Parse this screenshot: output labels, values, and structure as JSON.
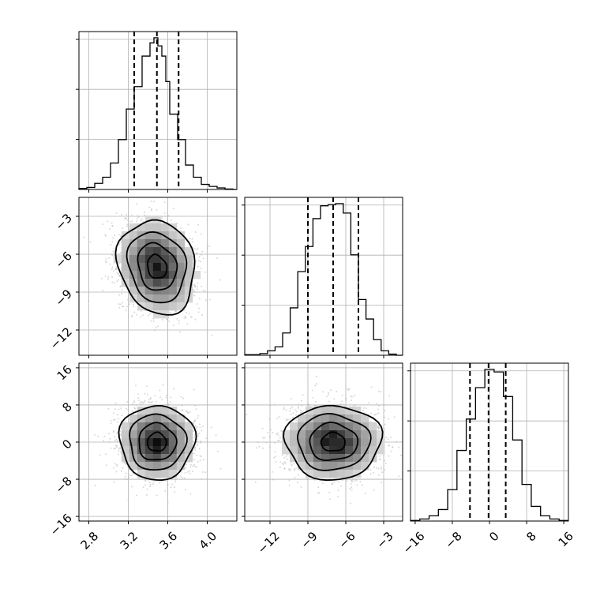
{
  "chart_data": {
    "type": "corner",
    "grid": true,
    "parameters": [
      {
        "ticks": [
          2.8,
          3.2,
          3.6,
          4.0
        ],
        "range": [
          2.7,
          4.3
        ]
      },
      {
        "ticks": [
          -12,
          -9,
          -6,
          -3
        ],
        "range": [
          -14,
          -1.5
        ]
      },
      {
        "ticks": [
          -16,
          -8,
          0,
          8,
          16
        ],
        "range": [
          -17,
          17
        ]
      }
    ],
    "tick_labels": {
      "p0": [
        "2.8",
        "3.2",
        "3.6",
        "4.0"
      ],
      "p1": [
        "−12",
        "−9",
        "−6",
        "−3"
      ],
      "p2": [
        "−16",
        "−8",
        "0",
        "8",
        "16"
      ]
    },
    "marginals": [
      {
        "param": 0,
        "edges": [
          2.7,
          2.78,
          2.86,
          2.94,
          3.02,
          3.1,
          3.18,
          3.26,
          3.34,
          3.42,
          3.46,
          3.5,
          3.54,
          3.58,
          3.62,
          3.7,
          3.78,
          3.86,
          3.94,
          4.02,
          4.1,
          4.18,
          4.26,
          4.3
        ],
        "counts": [
          2,
          4,
          12,
          24,
          52,
          98,
          158,
          202,
          262,
          288,
          298,
          282,
          262,
          212,
          148,
          98,
          48,
          24,
          10,
          6,
          3,
          1,
          0
        ],
        "quantiles": [
          3.26,
          3.49,
          3.71
        ]
      },
      {
        "param": 1,
        "edges": [
          -14,
          -13.4,
          -12.8,
          -12.2,
          -11.6,
          -11,
          -10.4,
          -9.8,
          -9.2,
          -8.6,
          -8,
          -7.4,
          -6.8,
          -6.2,
          -5.6,
          -5,
          -4.4,
          -3.8,
          -3.2,
          -2.6,
          -2,
          -1.5
        ],
        "counts": [
          1,
          1,
          3,
          8,
          15,
          40,
          85,
          150,
          195,
          245,
          268,
          270,
          272,
          255,
          180,
          100,
          65,
          28,
          8,
          2,
          0
        ],
        "quantiles": [
          -9.0,
          -7.0,
          -5.0
        ]
      },
      {
        "param": 2,
        "edges": [
          -17,
          -15,
          -13,
          -11,
          -9,
          -7,
          -5,
          -3,
          -1,
          1,
          3,
          5,
          7,
          9,
          11,
          13,
          15,
          17
        ],
        "counts": [
          1,
          4,
          10,
          22,
          60,
          135,
          195,
          255,
          290,
          285,
          238,
          155,
          70,
          28,
          10,
          4,
          1
        ],
        "quantiles": [
          -4.2,
          -0.2,
          3.5
        ]
      }
    ],
    "joint": [
      {
        "x_param": 0,
        "y_param": 1,
        "center": [
          3.49,
          -7.0
        ],
        "sigma": [
          0.19,
          1.9
        ],
        "rotation_deg": -18
      },
      {
        "x_param": 0,
        "y_param": 2,
        "center": [
          3.49,
          0.0
        ],
        "sigma": [
          0.19,
          4.0
        ],
        "rotation_deg": 0
      },
      {
        "x_param": 1,
        "y_param": 2,
        "center": [
          -7.0,
          0.0
        ],
        "sigma": [
          1.9,
          4.0
        ],
        "rotation_deg": 0
      }
    ],
    "contour_sigma_levels": [
      0.5,
      1.0,
      1.5,
      2.0
    ]
  }
}
